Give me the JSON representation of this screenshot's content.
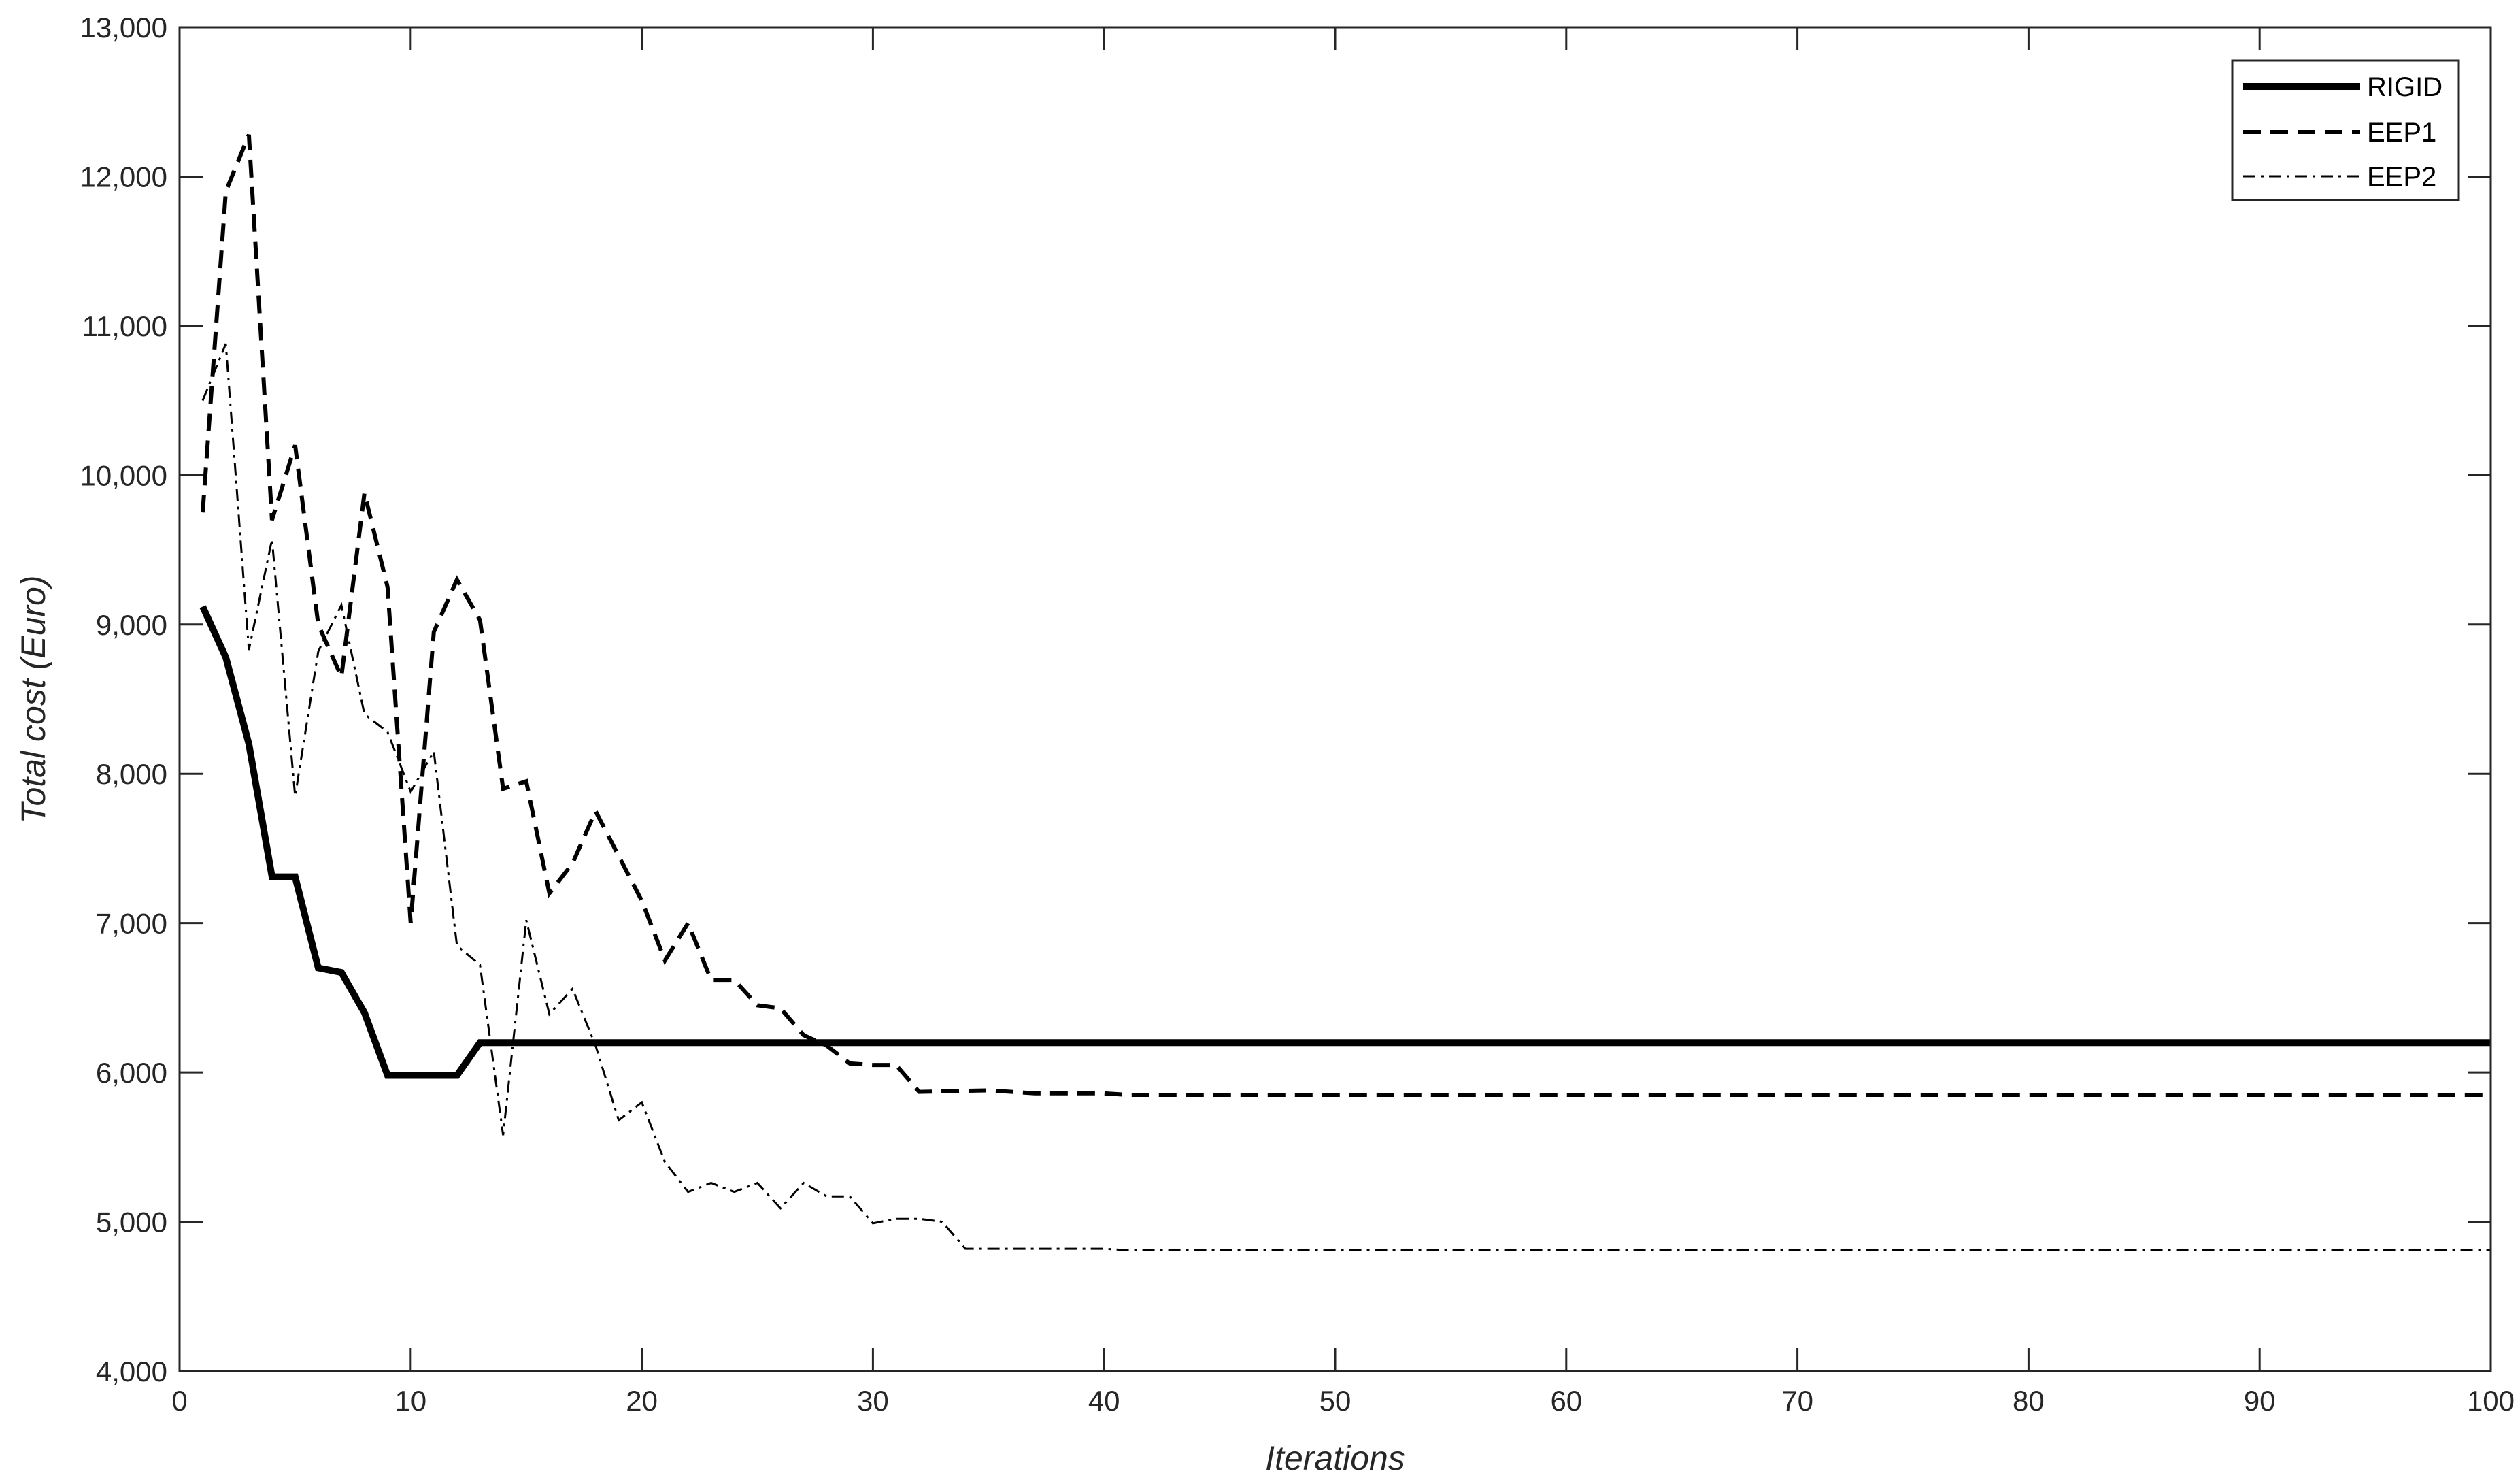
{
  "chart_data": {
    "type": "line",
    "title": "",
    "xlabel": "Iterations",
    "ylabel": "Total cost (Euro)",
    "xlim": [
      0,
      100
    ],
    "ylim": [
      4000,
      13000
    ],
    "xticks": [
      0,
      10,
      20,
      30,
      40,
      50,
      60,
      70,
      80,
      90,
      100
    ],
    "xtick_labels": [
      "0",
      "10",
      "20",
      "30",
      "40",
      "50",
      "60",
      "70",
      "80",
      "90",
      "100"
    ],
    "yticks": [
      4000,
      5000,
      6000,
      7000,
      8000,
      9000,
      10000,
      11000,
      12000,
      13000
    ],
    "ytick_labels": [
      "4,000",
      "5,000",
      "6,000",
      "7,000",
      "8,000",
      "9,000",
      "10,000",
      "11,000",
      "12,000",
      "13,000"
    ],
    "grid": false,
    "legend_position": "top-right",
    "series": [
      {
        "name": "RIGID",
        "style": "solid-thick",
        "color": "#000000",
        "points": [
          [
            1,
            9120
          ],
          [
            2,
            8780
          ],
          [
            3,
            8200
          ],
          [
            4,
            7310
          ],
          [
            5,
            7310
          ],
          [
            6,
            6700
          ],
          [
            7,
            6670
          ],
          [
            8,
            6400
          ],
          [
            9,
            5980
          ],
          [
            10,
            5980
          ],
          [
            11,
            5980
          ],
          [
            12,
            5980
          ],
          [
            13,
            6200
          ],
          [
            20,
            6200
          ],
          [
            30,
            6200
          ],
          [
            40,
            6200
          ],
          [
            50,
            6200
          ],
          [
            60,
            6200
          ],
          [
            70,
            6200
          ],
          [
            80,
            6200
          ],
          [
            90,
            6200
          ],
          [
            100,
            6200
          ]
        ]
      },
      {
        "name": "EEP1",
        "style": "dashed",
        "color": "#000000",
        "points": [
          [
            1,
            9750
          ],
          [
            2,
            11900
          ],
          [
            3,
            12280
          ],
          [
            4,
            9700
          ],
          [
            5,
            10200
          ],
          [
            6,
            9000
          ],
          [
            7,
            8650
          ],
          [
            8,
            9880
          ],
          [
            9,
            9250
          ],
          [
            10,
            7000
          ],
          [
            11,
            8950
          ],
          [
            12,
            9300
          ],
          [
            13,
            9030
          ],
          [
            14,
            7900
          ],
          [
            15,
            7950
          ],
          [
            16,
            7200
          ],
          [
            17,
            7400
          ],
          [
            18,
            7750
          ],
          [
            19,
            7450
          ],
          [
            20,
            7150
          ],
          [
            21,
            6750
          ],
          [
            22,
            7000
          ],
          [
            23,
            6620
          ],
          [
            24,
            6620
          ],
          [
            25,
            6450
          ],
          [
            26,
            6430
          ],
          [
            27,
            6250
          ],
          [
            28,
            6180
          ],
          [
            29,
            6060
          ],
          [
            30,
            6050
          ],
          [
            31,
            6050
          ],
          [
            32,
            5870
          ],
          [
            35,
            5880
          ],
          [
            37,
            5860
          ],
          [
            40,
            5860
          ],
          [
            41,
            5850
          ],
          [
            50,
            5850
          ],
          [
            60,
            5850
          ],
          [
            70,
            5850
          ],
          [
            80,
            5850
          ],
          [
            90,
            5850
          ],
          [
            100,
            5850
          ]
        ]
      },
      {
        "name": "EEP2",
        "style": "dash-dot",
        "color": "#000000",
        "points": [
          [
            1,
            10500
          ],
          [
            2,
            10880
          ],
          [
            3,
            8830
          ],
          [
            4,
            9570
          ],
          [
            5,
            7850
          ],
          [
            6,
            8820
          ],
          [
            7,
            9130
          ],
          [
            8,
            8400
          ],
          [
            9,
            8280
          ],
          [
            10,
            7880
          ],
          [
            11,
            8150
          ],
          [
            12,
            6850
          ],
          [
            13,
            6720
          ],
          [
            14,
            5580
          ],
          [
            15,
            7020
          ],
          [
            16,
            6390
          ],
          [
            17,
            6560
          ],
          [
            18,
            6180
          ],
          [
            19,
            5680
          ],
          [
            20,
            5800
          ],
          [
            21,
            5400
          ],
          [
            22,
            5200
          ],
          [
            23,
            5260
          ],
          [
            24,
            5200
          ],
          [
            25,
            5260
          ],
          [
            26,
            5090
          ],
          [
            27,
            5260
          ],
          [
            28,
            5170
          ],
          [
            29,
            5170
          ],
          [
            30,
            4990
          ],
          [
            31,
            5020
          ],
          [
            32,
            5020
          ],
          [
            33,
            5000
          ],
          [
            34,
            4820
          ],
          [
            40,
            4820
          ],
          [
            41,
            4810
          ],
          [
            50,
            4810
          ],
          [
            60,
            4810
          ],
          [
            70,
            4810
          ],
          [
            80,
            4810
          ],
          [
            90,
            4810
          ],
          [
            100,
            4810
          ]
        ]
      }
    ]
  }
}
